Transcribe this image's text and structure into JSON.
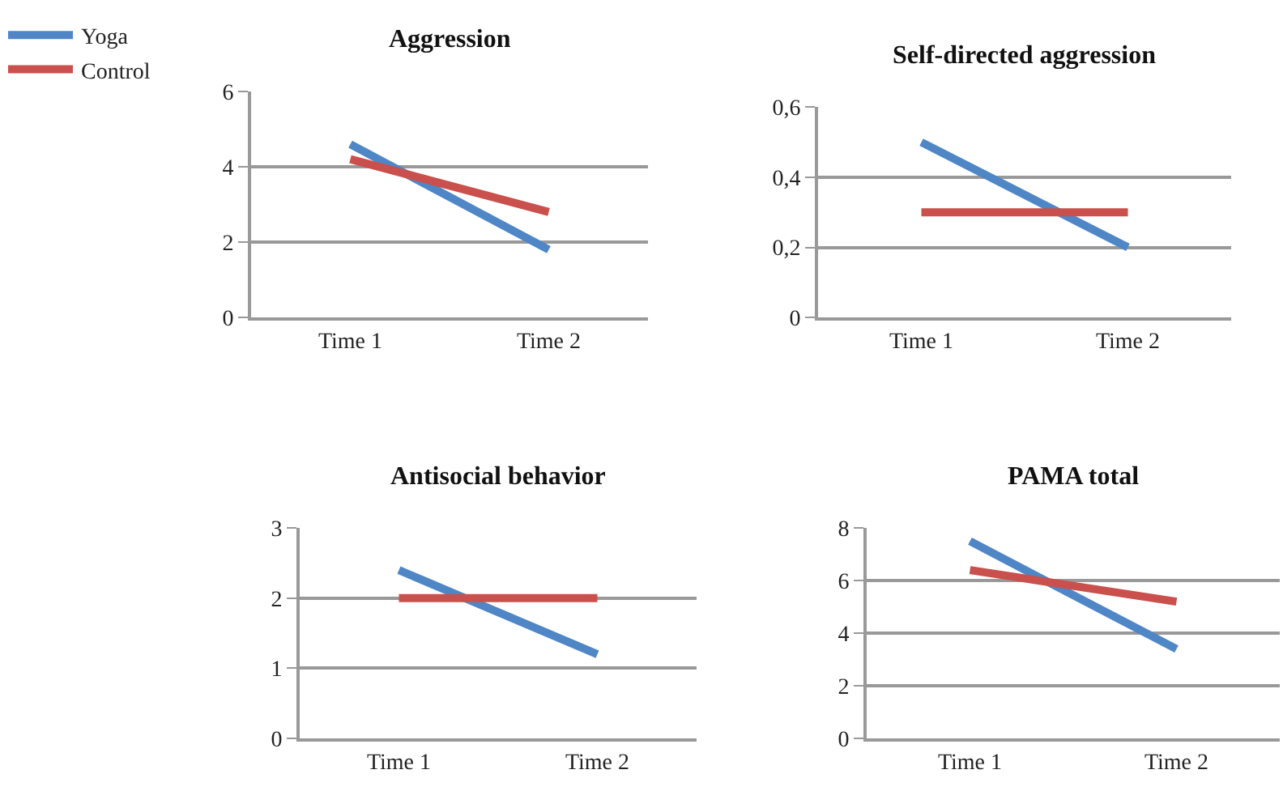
{
  "chart_data": [
    {
      "type": "line",
      "title": "Aggression",
      "categories": [
        "Time 1",
        "Time 2"
      ],
      "legend": "top left",
      "grid": "y",
      "ylim": [
        0,
        6
      ],
      "yticks": [
        0,
        2,
        4,
        6
      ],
      "series": [
        {
          "name": "Yoga",
          "color": "#4f86c6",
          "values": [
            4.6,
            1.8
          ]
        },
        {
          "name": "Control",
          "color": "#c9504c",
          "values": [
            4.2,
            2.8
          ]
        }
      ]
    },
    {
      "type": "line",
      "title": "Self-directed aggression",
      "categories": [
        "Time 1",
        "Time 2"
      ],
      "grid": "y",
      "ylim": [
        0,
        0.6
      ],
      "yticks": [
        0,
        {
          "value": 0.2,
          "label": "0,2"
        },
        {
          "value": 0.4,
          "label": "0,4"
        },
        {
          "value": 0.6,
          "label": "0,6"
        }
      ],
      "series": [
        {
          "color": "#4f86c6",
          "values": [
            0.5,
            0.2
          ]
        },
        {
          "color": "#c9504c",
          "values": [
            0.3,
            0.3
          ]
        }
      ]
    },
    {
      "type": "line",
      "title": "Antisocial behavior",
      "categories": [
        "Time 1",
        "Time 2"
      ],
      "grid": "y",
      "ylim": [
        0,
        3
      ],
      "yticks": [
        0,
        1,
        2,
        3
      ],
      "series": [
        {
          "color": "#4f86c6",
          "values": [
            2.4,
            1.2
          ]
        },
        {
          "color": "#c9504c",
          "values": [
            2,
            2
          ]
        }
      ]
    },
    {
      "type": "line",
      "title": "PAMA total",
      "categories": [
        "Time 1",
        "Time 2"
      ],
      "grid": "y",
      "ylim": [
        0,
        8
      ],
      "yticks": [
        0,
        2,
        4,
        6,
        8
      ],
      "series": [
        {
          "color": "#4f86c6",
          "values": [
            7.5,
            3.4
          ]
        },
        {
          "color": "#c9504c",
          "values": [
            6.4,
            5.2
          ]
        }
      ]
    }
  ]
}
